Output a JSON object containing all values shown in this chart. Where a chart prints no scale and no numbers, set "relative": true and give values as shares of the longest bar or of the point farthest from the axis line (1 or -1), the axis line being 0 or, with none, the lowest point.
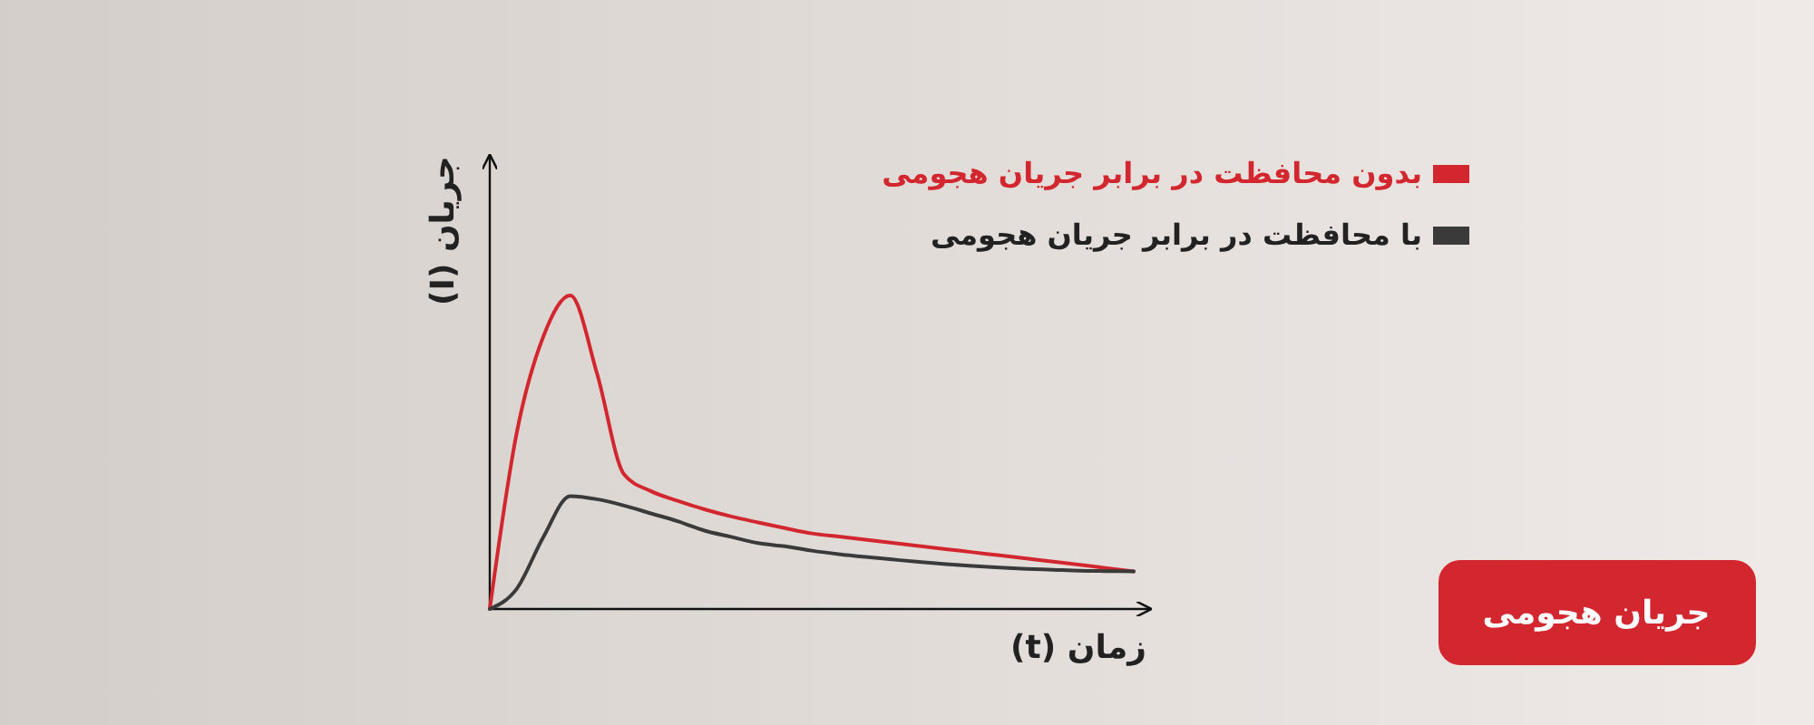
{
  "chart_data": {
    "type": "line",
    "relative": true,
    "title": "جریان هجومی",
    "xlabel": "زمان (t)",
    "ylabel": "جریان (I)",
    "legend": "top right",
    "grid": false,
    "marker": "none",
    "line_style": "solid",
    "categories": [
      null,
      null,
      null,
      null,
      null,
      null,
      null,
      null,
      null,
      null,
      null,
      null,
      null,
      null,
      null,
      null,
      null,
      null,
      null,
      null,
      null,
      null,
      null,
      null,
      null
    ],
    "series": [
      {
        "name": "بدون محافظت در برابر جریان هجومی",
        "color": "#d3272f",
        "values": [
          0,
          0.56,
          0.87,
          1,
          0.75,
          0.43,
          0.376,
          0.345,
          0.318,
          0.295,
          0.276,
          0.258,
          0.241,
          0.231,
          0.221,
          0.211,
          0.201,
          0.191,
          0.181,
          0.171,
          0.161,
          0.151,
          0.141,
          0.13,
          0.12
        ]
      },
      {
        "name": "با محافظت در برابر جریان هجومی",
        "color": "#3a3a3a",
        "values": [
          0,
          0.064,
          0.23,
          0.36,
          0.35,
          0.33,
          0.305,
          0.28,
          0.25,
          0.23,
          0.21,
          0.2,
          0.186,
          0.175,
          0.166,
          0.158,
          0.15,
          0.143,
          0.137,
          0.132,
          0.128,
          0.125,
          0.122,
          0.121,
          0.12
        ]
      }
    ]
  }
}
